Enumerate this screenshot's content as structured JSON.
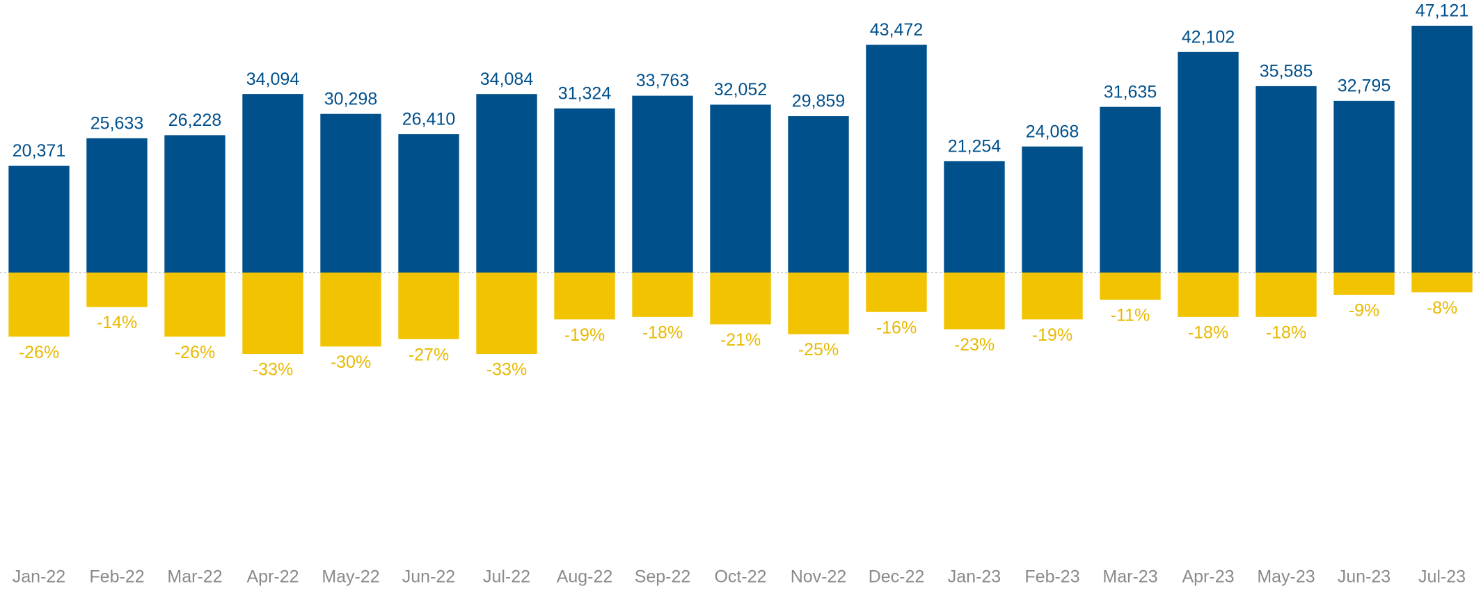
{
  "chart_data": {
    "type": "bar",
    "categories": [
      "Jan-22",
      "Feb-22",
      "Mar-22",
      "Apr-22",
      "May-22",
      "Jun-22",
      "Jul-22",
      "Aug-22",
      "Sep-22",
      "Oct-22",
      "Nov-22",
      "Dec-22",
      "Jan-23",
      "Feb-23",
      "Mar-23",
      "Apr-23",
      "May-23",
      "Jun-23",
      "Jul-23"
    ],
    "series": [
      {
        "color": "#00508c",
        "values": [
          20371,
          25633,
          26228,
          34094,
          30298,
          26410,
          34084,
          31324,
          33763,
          32052,
          29859,
          43472,
          21254,
          24068,
          31635,
          42102,
          35585,
          32795,
          47121
        ],
        "value_labels": [
          "20,371",
          "25,633",
          "26,228",
          "34,094",
          "30,298",
          "26,410",
          "34,084",
          "31,324",
          "33,763",
          "32,052",
          "29,859",
          "43,472",
          "21,254",
          "24,068",
          "31,635",
          "42,102",
          "35,585",
          "32,795",
          "47,121"
        ]
      },
      {
        "color": "#f2c300",
        "values": [
          -26,
          -14,
          -26,
          -33,
          -30,
          -27,
          -33,
          -19,
          -18,
          -21,
          -25,
          -16,
          -23,
          -19,
          -11,
          -18,
          -18,
          -9,
          -8
        ],
        "value_labels": [
          "-26%",
          "-14%",
          "-26%",
          "-33%",
          "-30%",
          "-27%",
          "-33%",
          "-19%",
          "-18%",
          "-21%",
          "-25%",
          "-16%",
          "-23%",
          "-19%",
          "-11%",
          "-18%",
          "-18%",
          "-9%",
          "-8%"
        ]
      }
    ]
  }
}
